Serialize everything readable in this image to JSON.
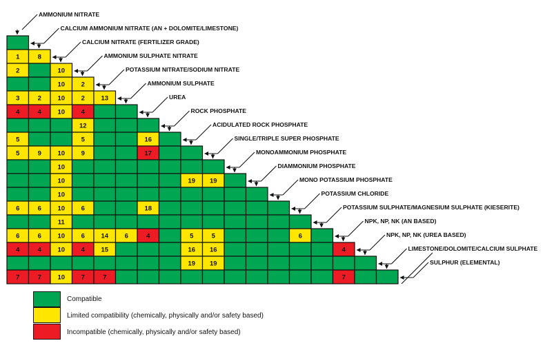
{
  "colors": {
    "compatible": "#00A651",
    "limited": "#FFE600",
    "incompatible": "#ED1C24",
    "line": "#111111"
  },
  "materials": [
    "AMMONIUM NITRATE",
    "CALCIUM AMMONIUM NITRATE (AN + DOLOMITE/LIMESTONE)",
    "CALCIUM NITRATE (FERTILIZER GRADE)",
    "AMMONIUM SULPHATE NITRATE",
    "POTASSIUM NITRATE/SODIUM NITRATE",
    "AMMONIUM SULPHATE",
    "UREA",
    "ROCK PHOSPHATE",
    "ACIDULATED ROCK PHOSPHATE",
    "SINGLE/TRIPLE SUPER PHOSPHATE",
    "MONOAMMONIUM PHOSPHATE",
    "DIAMMONIUM PHOSPHATE",
    "MONO POTASSIUM PHOSPHATE",
    "POTASSIUM CHLORIDE",
    "POTASSIUM SULPHATE/MAGNESIUM SULPHATE (KIESERITE)",
    "NPK, NP, NK (AN BASED)",
    "NPK, NP, NK (UREA BASED)",
    "LIMESTONE/DOLOMITE/CALCIUM SULPHATE",
    "SULPHUR (ELEMENTAL)"
  ],
  "chart_data": {
    "type": "heatmap",
    "layout": "lower-triangular compatibility matrix; row i pairs materials[i] with columns materials[0..i-1]; labels connect via arrows to their row end and column top",
    "cell_codes": {
      "C": "Compatible (green)",
      "L": "Limited compatibility (yellow)",
      "I": "Incompatible (red)",
      "digits": "footnote reference number printed in the cell"
    },
    "rows": [
      [
        "C"
      ],
      [
        "L1",
        "L8"
      ],
      [
        "L2",
        "C",
        "L10"
      ],
      [
        "C",
        "C",
        "L10",
        "L2"
      ],
      [
        "L3",
        "L2",
        "L10",
        "L2",
        "L13"
      ],
      [
        "I4",
        "I4",
        "L10",
        "I4",
        "C",
        "C"
      ],
      [
        "C",
        "C",
        "C",
        "L12",
        "C",
        "C",
        "C"
      ],
      [
        "L5",
        "C",
        "C",
        "L5",
        "C",
        "C",
        "L16",
        "C"
      ],
      [
        "L5",
        "L9",
        "L10",
        "L9",
        "C",
        "C",
        "I17",
        "C",
        "C"
      ],
      [
        "C",
        "C",
        "L10",
        "C",
        "C",
        "C",
        "C",
        "C",
        "C",
        "C"
      ],
      [
        "C",
        "C",
        "L10",
        "C",
        "C",
        "C",
        "C",
        "C",
        "L19",
        "L19",
        "C"
      ],
      [
        "C",
        "C",
        "L10",
        "C",
        "C",
        "C",
        "C",
        "C",
        "C",
        "C",
        "C",
        "C"
      ],
      [
        "L6",
        "L6",
        "L10",
        "L6",
        "C",
        "C",
        "L18",
        "C",
        "C",
        "C",
        "C",
        "C",
        "C"
      ],
      [
        "C",
        "C",
        "L11",
        "C",
        "C",
        "C",
        "C",
        "C",
        "C",
        "C",
        "C",
        "C",
        "C",
        "C"
      ],
      [
        "L6",
        "L6",
        "L10",
        "L6",
        "L14",
        "L6",
        "I4",
        "C",
        "L5",
        "L5",
        "C",
        "C",
        "C",
        "L6",
        "C"
      ],
      [
        "I4",
        "I4",
        "L10",
        "I4",
        "L15",
        "C",
        "C",
        "C",
        "L16",
        "L16",
        "C",
        "C",
        "C",
        "C",
        "C",
        "I4"
      ],
      [
        "C",
        "C",
        "C",
        "C",
        "C",
        "C",
        "C",
        "C",
        "L19",
        "L19",
        "C",
        "C",
        "C",
        "C",
        "C",
        "C",
        "C"
      ],
      [
        "I7",
        "I7",
        "L10",
        "I7",
        "I7",
        "C",
        "C",
        "C",
        "C",
        "C",
        "C",
        "C",
        "C",
        "C",
        "C",
        "I7",
        "C",
        "C"
      ]
    ]
  },
  "legend": {
    "items": [
      {
        "state": "C",
        "label": "Compatible"
      },
      {
        "state": "L",
        "label": "Limited compatibility (chemically, physically and/or safety based)"
      },
      {
        "state": "I",
        "label": "Incompatible (chemically, physically and/or safety based)"
      }
    ]
  }
}
